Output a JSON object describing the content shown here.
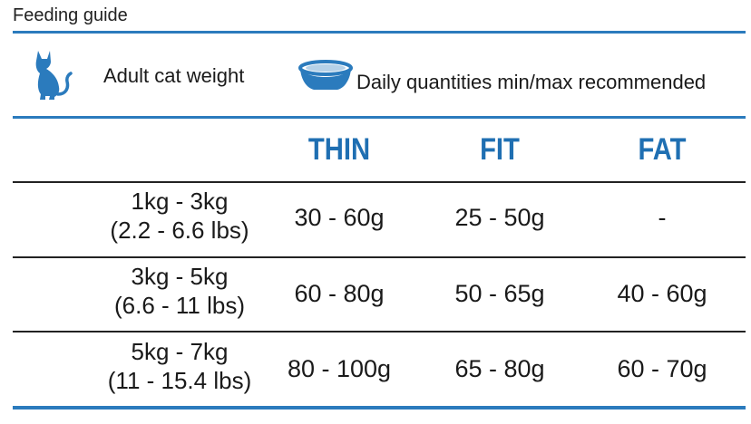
{
  "title": "Feeding guide",
  "header": {
    "weight_label": "Adult cat weight",
    "quantity_label": "Daily quantities min/max recommended",
    "icons": [
      "cat-icon",
      "bowl-icon"
    ]
  },
  "columns": [
    "THIN",
    "FIT",
    "FAT"
  ],
  "rows": [
    {
      "weight_kg": "1kg - 3kg",
      "weight_lbs": "(2.2 - 6.6 lbs)",
      "values": [
        "30 - 60g",
        "25 - 50g",
        "-"
      ]
    },
    {
      "weight_kg": "3kg - 5kg",
      "weight_lbs": "(6.6 - 11 lbs)",
      "values": [
        "60 - 80g",
        "50 - 65g",
        "40 - 60g"
      ]
    },
    {
      "weight_kg": "5kg - 7kg",
      "weight_lbs": "(11 - 15.4 lbs)",
      "values": [
        "80 - 100g",
        "65 - 80g",
        "60 - 70g"
      ]
    }
  ],
  "colors": {
    "accent": "#2b7bbd",
    "heading": "#1f6fb2"
  }
}
